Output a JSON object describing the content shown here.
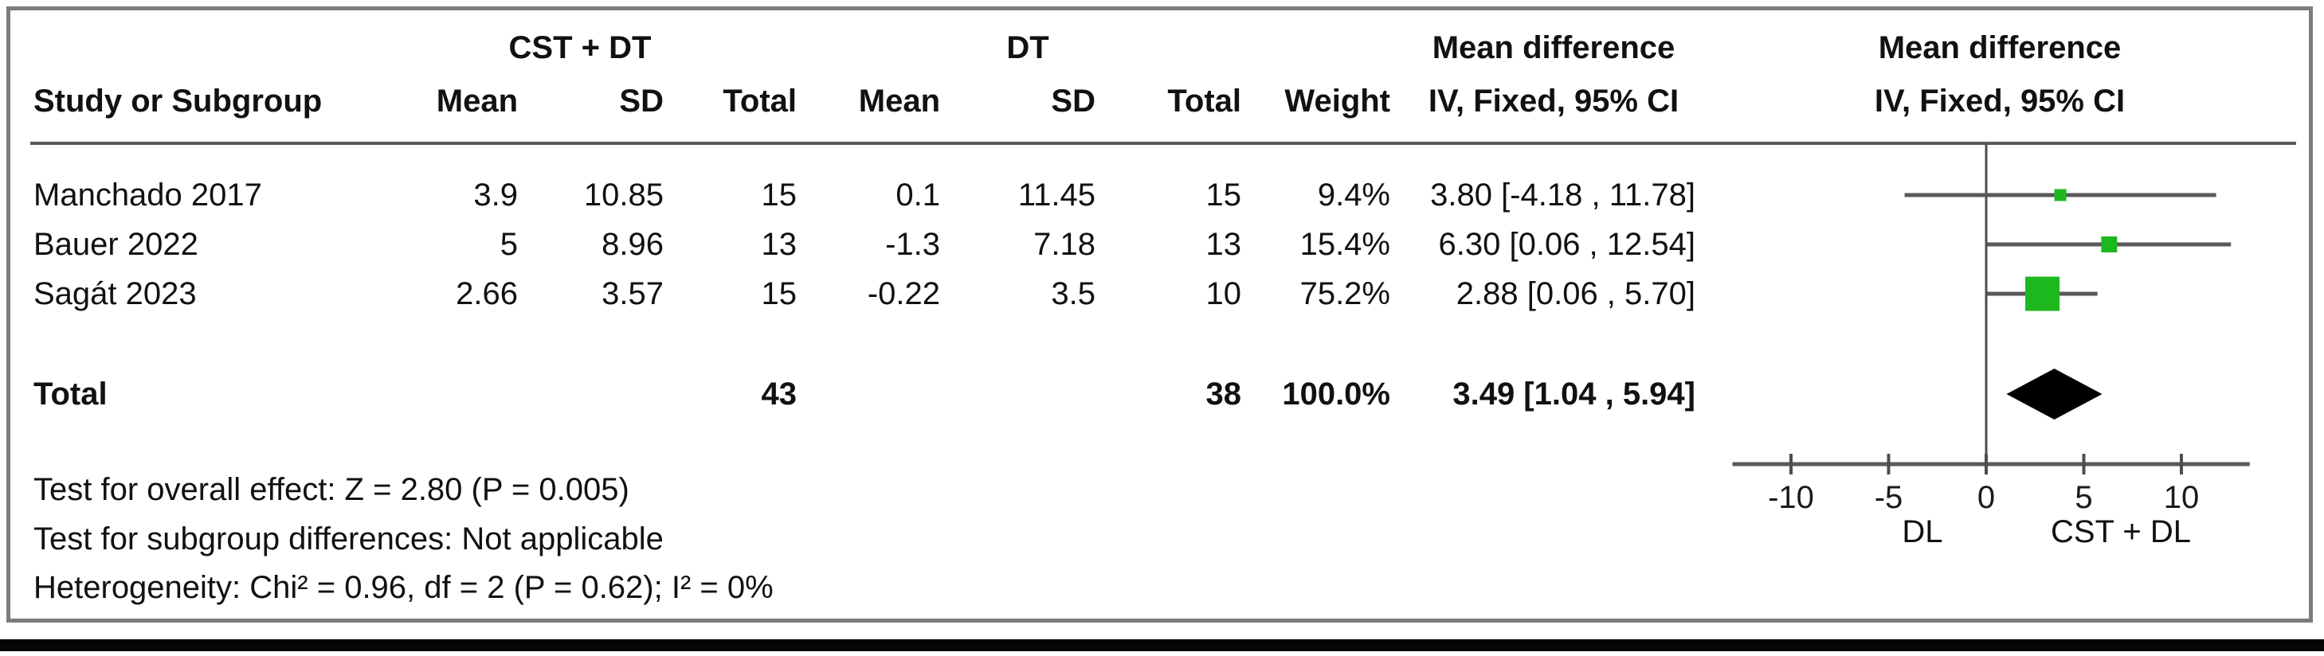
{
  "table": {
    "group_headers": {
      "treatment": "CST + DT",
      "control": "DT"
    },
    "columns": {
      "study": "Study or Subgroup",
      "mean1": "Mean",
      "sd1": "SD",
      "total1": "Total",
      "mean2": "Mean",
      "sd2": "SD",
      "total2": "Total",
      "weight": "Weight",
      "md_line1": "Mean difference",
      "md_line2": "IV, Fixed, 95% CI"
    },
    "rows": [
      {
        "study": "Manchado 2017",
        "mean1": "3.9",
        "sd1": "10.85",
        "total1": "15",
        "mean2": "0.1",
        "sd2": "11.45",
        "total2": "15",
        "weight": "9.4%",
        "ci": "3.80 [-4.18 , 11.78]"
      },
      {
        "study": "Bauer 2022",
        "mean1": "5",
        "sd1": "8.96",
        "total1": "13",
        "mean2": "-1.3",
        "sd2": "7.18",
        "total2": "13",
        "weight": "15.4%",
        "ci": "6.30 [0.06 , 12.54]"
      },
      {
        "study": "Sagát 2023",
        "mean1": "2.66",
        "sd1": "3.57",
        "total1": "15",
        "mean2": "-0.22",
        "sd2": "3.5",
        "total2": "10",
        "weight": "75.2%",
        "ci": "2.88 [0.06 , 5.70]"
      }
    ],
    "total_row": {
      "label": "Total",
      "total1": "43",
      "total2": "38",
      "weight": "100.0%",
      "ci": "3.49 [1.04 , 5.94]"
    }
  },
  "plot": {
    "header_line1": "Mean difference",
    "header_line2": "IV, Fixed, 95% CI",
    "favours_left": "DL",
    "favours_right": "CST + DL"
  },
  "footer": {
    "line1": "Test for overall effect: Z = 2.80 (P = 0.005)",
    "line2": "Test for subgroup differences: Not applicable",
    "line3": "Heterogeneity: Chi² = 0.96, df = 2 (P = 0.62); I² = 0%"
  },
  "colors": {
    "marker_green": "#1db81d",
    "diamond_black": "#000000",
    "line_gray": "#595959",
    "tick_gray": "#4d4d4d",
    "frame_gray": "#7c7c7c",
    "text_black": "#1a1a1a"
  },
  "chart_data": {
    "type": "forest",
    "effect_measure": "Mean difference",
    "model": "IV, Fixed, 95% CI",
    "studies": [
      {
        "name": "Manchado 2017",
        "estimate": 3.8,
        "ci_lower": -4.18,
        "ci_upper": 11.78,
        "weight_pct": 9.4
      },
      {
        "name": "Bauer 2022",
        "estimate": 6.3,
        "ci_lower": 0.06,
        "ci_upper": 12.54,
        "weight_pct": 15.4
      },
      {
        "name": "Sagát 2023",
        "estimate": 2.88,
        "ci_lower": 0.06,
        "ci_upper": 5.7,
        "weight_pct": 75.2
      }
    ],
    "total": {
      "name": "Total",
      "estimate": 3.49,
      "ci_lower": 1.04,
      "ci_upper": 5.94,
      "weight_pct": 100.0
    },
    "x_ticks": [
      -10,
      -5,
      0,
      5,
      10
    ],
    "xlim": [
      -13,
      13.5
    ],
    "null_line": 0,
    "favours_left": "DL",
    "favours_right": "CST + DL",
    "marker_color": "#1db81d",
    "diamond_color": "#000000"
  }
}
